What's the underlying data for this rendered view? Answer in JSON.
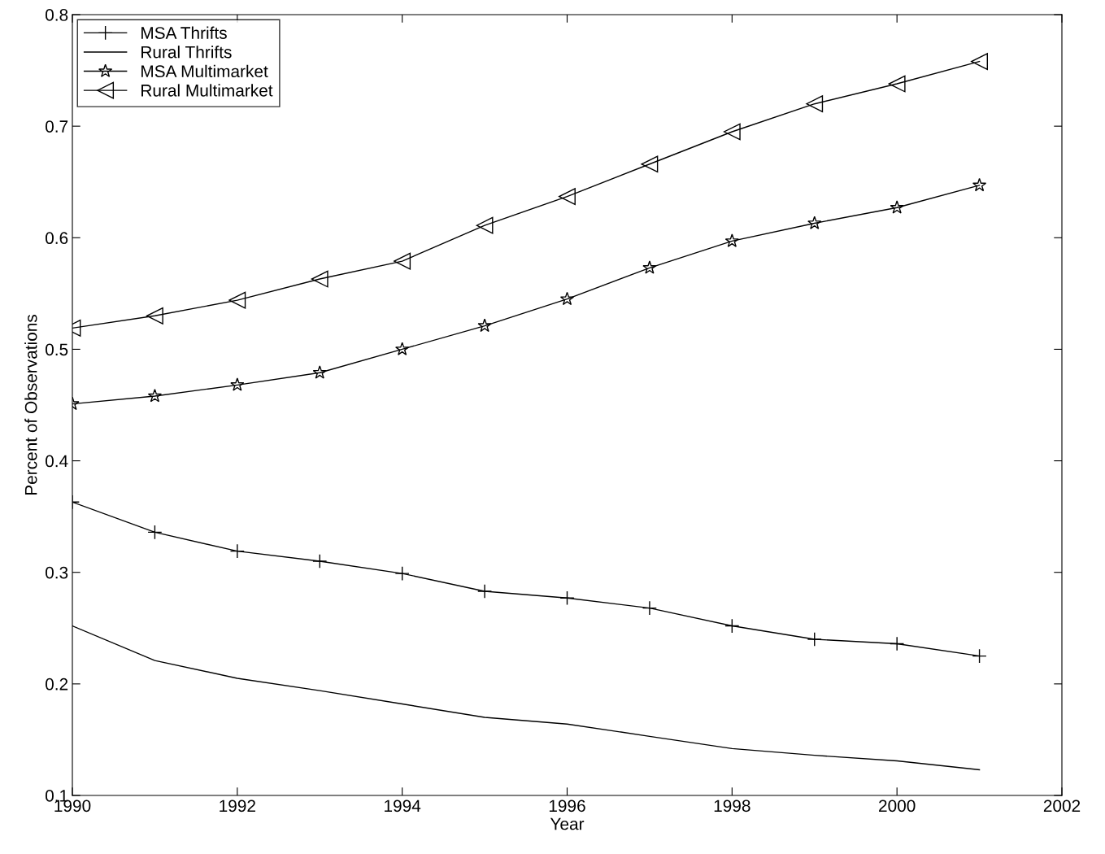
{
  "chart_data": {
    "type": "line",
    "xlabel": "Year",
    "ylabel": "Percent of Observations",
    "x": [
      1990,
      1991,
      1992,
      1993,
      1994,
      1995,
      1996,
      1997,
      1998,
      1999,
      2000,
      2001
    ],
    "series": [
      {
        "name": "MSA Thrifts",
        "color": "#000000",
        "marker": "cross",
        "values": [
          0.363,
          0.336,
          0.319,
          0.31,
          0.299,
          0.283,
          0.277,
          0.268,
          0.252,
          0.24,
          0.236,
          0.225
        ]
      },
      {
        "name": "Rural Thrifts",
        "color": "#000000",
        "marker": "none",
        "values": [
          0.252,
          0.221,
          0.205,
          0.194,
          0.182,
          0.17,
          0.164,
          0.153,
          0.142,
          0.136,
          0.131,
          0.123
        ]
      },
      {
        "name": "MSA Multimarket",
        "color": "#000000",
        "marker": "star",
        "values": [
          0.451,
          0.458,
          0.468,
          0.479,
          0.5,
          0.521,
          0.545,
          0.573,
          0.597,
          0.613,
          0.627,
          0.647
        ]
      },
      {
        "name": "Rural Multimarket",
        "color": "#000000",
        "marker": "triangle",
        "values": [
          0.519,
          0.53,
          0.544,
          0.563,
          0.579,
          0.611,
          0.637,
          0.666,
          0.695,
          0.72,
          0.738,
          0.758
        ]
      }
    ],
    "xlim": [
      1990,
      2002
    ],
    "xticks": [
      1990,
      1992,
      1994,
      1996,
      1998,
      2000,
      2002
    ],
    "ylim": [
      0.1,
      0.8
    ],
    "yticks": [
      0.1,
      0.2,
      0.3,
      0.4,
      0.5,
      0.6,
      0.7,
      0.8
    ],
    "grid": false,
    "legend": "top left",
    "line_style": "solid"
  }
}
